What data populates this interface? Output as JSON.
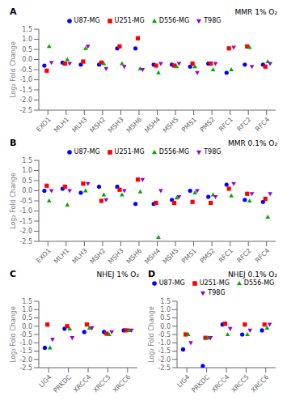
{
  "chart_data": [
    {
      "type": "scatter",
      "title": "MMR 1% O₂",
      "annotations": [
        "A"
      ],
      "ylabel": "Log₂ Fold Change",
      "legend": "top",
      "categories": [
        "EXO1",
        "MLH1",
        "MLH3",
        "MSH2",
        "MSH3",
        "MSH6",
        "MSH4",
        "MSH5",
        "PMS1",
        "PMS2",
        "RFC1",
        "RFC2",
        "RFC4"
      ],
      "series": [
        {
          "name": "U87-MG",
          "color": "#0000ff",
          "marker": "circle",
          "values": [
            -0.3,
            -0.15,
            -0.25,
            -0.25,
            0.55,
            0.55,
            -0.25,
            -0.25,
            -0.35,
            -0.2,
            -0.65,
            -0.25,
            -0.25
          ]
        },
        {
          "name": "U251-MG",
          "color": "#ff0000",
          "marker": "square",
          "values": [
            -0.55,
            -0.2,
            -0.1,
            -0.15,
            0.65,
            1.05,
            -0.3,
            -0.3,
            -0.2,
            -0.2,
            0.55,
            0.65,
            -0.35
          ]
        },
        {
          "name": "D556-MG",
          "color": "#00aa00",
          "marker": "triangle-up",
          "values": [
            0.65,
            0.0,
            0.55,
            -0.2,
            -0.2,
            -0.45,
            -0.65,
            -0.35,
            -0.35,
            -0.5,
            -0.5,
            0.6,
            -0.1
          ]
        },
        {
          "name": "T98G",
          "color": "#9900cc",
          "marker": "triangle-down",
          "values": [
            -0.15,
            -0.2,
            0.65,
            -0.45,
            -0.35,
            -0.5,
            -0.2,
            -0.2,
            -0.65,
            -0.2,
            0.6,
            -0.35,
            -0.2
          ]
        }
      ],
      "ylim": [
        -2.5,
        1.5
      ],
      "yticks": [
        -2.5,
        {
          "value": -2.0,
          "label": "-2.0"
        },
        -1.5,
        {
          "value": -1.0,
          "label": "-1.0"
        },
        -0.5,
        {
          "value": 0.0,
          "label": "0.0"
        },
        0.5,
        {
          "value": 1.0,
          "label": "1.0"
        },
        1.5
      ]
    },
    {
      "type": "scatter",
      "title": "MMR 0.1% O₂",
      "annotations": [
        "B"
      ],
      "ylabel": "Log₂ Fold Change",
      "legend": "top",
      "categories": [
        "EXO1",
        "MLH1",
        "MLH3",
        "MSH2",
        "MSH3",
        "MSH6",
        "MSH4",
        "MSH5",
        "PMS1",
        "PMS2",
        "RFC1",
        "RFC2",
        "RFC4"
      ],
      "series": [
        {
          "name": "U87-MG",
          "color": "#0000ff",
          "marker": "circle",
          "values": [
            0.0,
            0.1,
            -0.1,
            0.2,
            0.2,
            -0.65,
            -0.65,
            -0.45,
            0.0,
            -0.3,
            0.3,
            -0.45,
            -0.55
          ]
        },
        {
          "name": "U251-MG",
          "color": "#ff0000",
          "marker": "square",
          "values": [
            0.25,
            0.2,
            0.35,
            -0.5,
            0.05,
            0.55,
            -0.6,
            -0.6,
            -0.55,
            -0.6,
            0.1,
            -0.15,
            -0.4
          ]
        },
        {
          "name": "D556-MG",
          "color": "#00aa00",
          "marker": "triangle-up",
          "values": [
            -0.5,
            -0.7,
            0.0,
            -0.2,
            -0.2,
            -0.05,
            -2.3,
            -0.35,
            -0.1,
            -0.2,
            -0.25,
            -0.5,
            -1.3
          ]
        },
        {
          "name": "T98G",
          "color": "#9900cc",
          "marker": "triangle-down",
          "values": [
            0.0,
            0.0,
            0.35,
            -0.45,
            0.0,
            0.55,
            0.0,
            -0.3,
            0.0,
            -0.3,
            0.35,
            -0.15,
            -0.15
          ]
        }
      ],
      "ylim": [
        -2.5,
        1.5
      ],
      "yticks": [
        -2.5,
        {
          "value": -2.0,
          "label": "-2.0"
        },
        -1.5,
        {
          "value": -1.0,
          "label": "-1.0"
        },
        -0.5,
        {
          "value": 0.0,
          "label": "0.0"
        },
        0.5,
        {
          "value": 1.0,
          "label": "1.0"
        },
        1.5
      ]
    },
    {
      "type": "scatter",
      "title": "NHEJ 1% O₂",
      "annotations": [
        "C"
      ],
      "ylabel": "Log₂ Fold Change",
      "categories": [
        "LIG4",
        "PRKDC",
        "XRCC4",
        "XRCC5",
        "XRCC6"
      ],
      "series": [
        {
          "name": "U87-MG",
          "color": "#0000ff",
          "marker": "circle",
          "values": [
            -1.3,
            -0.15,
            -0.35,
            -0.35,
            -0.25
          ]
        },
        {
          "name": "U251-MG",
          "color": "#ff0000",
          "marker": "square",
          "values": [
            0.1,
            0.0,
            0.1,
            -0.45,
            -0.25
          ]
        },
        {
          "name": "D556-MG",
          "color": "#00aa00",
          "marker": "triangle-up",
          "values": [
            -1.3,
            -0.15,
            -0.1,
            -0.5,
            -0.25
          ]
        },
        {
          "name": "T98G",
          "color": "#9900cc",
          "marker": "triangle-down",
          "values": [
            -0.8,
            -0.7,
            -0.1,
            -0.35,
            -0.25
          ]
        }
      ],
      "ylim": [
        -2.5,
        1.5
      ],
      "yticks": [
        -2.5,
        {
          "value": -2.0,
          "label": "-2.0"
        },
        -1.5,
        {
          "value": -1.0,
          "label": "-1.0"
        },
        -0.5,
        {
          "value": 0.0,
          "label": "0.0"
        },
        0.5,
        {
          "value": 1.0,
          "label": "1.0"
        },
        1.5
      ]
    },
    {
      "type": "scatter",
      "title": "NHEJ 0.1% O₂",
      "annotations": [
        "D"
      ],
      "ylabel": "Log₂ Fold Change",
      "legend": "top",
      "categories": [
        "LIG4",
        "PRKDC",
        "XRCC4",
        "XRCC5",
        "XRCC6"
      ],
      "series": [
        {
          "name": "U87-MG",
          "color": "#0000ff",
          "marker": "circle",
          "values": [
            -1.4,
            -2.4,
            0.1,
            -0.5,
            -0.25
          ]
        },
        {
          "name": "U251-MG",
          "color": "#ff0000",
          "marker": "square",
          "values": [
            -0.5,
            -0.7,
            0.15,
            0.1,
            0.1
          ]
        },
        {
          "name": "D556-MG",
          "color": "#00aa00",
          "marker": "triangle-up",
          "values": [
            -0.5,
            -0.7,
            -0.5,
            -0.5,
            -0.1
          ]
        },
        {
          "name": "T98G",
          "color": "#9900cc",
          "marker": "triangle-down",
          "values": [
            -1.0,
            -0.7,
            -0.15,
            -0.25,
            0.1
          ]
        }
      ],
      "ylim": [
        -2.5,
        1.5
      ],
      "yticks": [
        -2.5,
        {
          "value": -2.0,
          "label": "-2.0"
        },
        -1.5,
        {
          "value": -1.0,
          "label": "-1.0"
        },
        -0.5,
        {
          "value": 0.0,
          "label": "0.0"
        },
        0.5,
        {
          "value": 1.0,
          "label": "1.0"
        },
        1.5
      ]
    }
  ]
}
